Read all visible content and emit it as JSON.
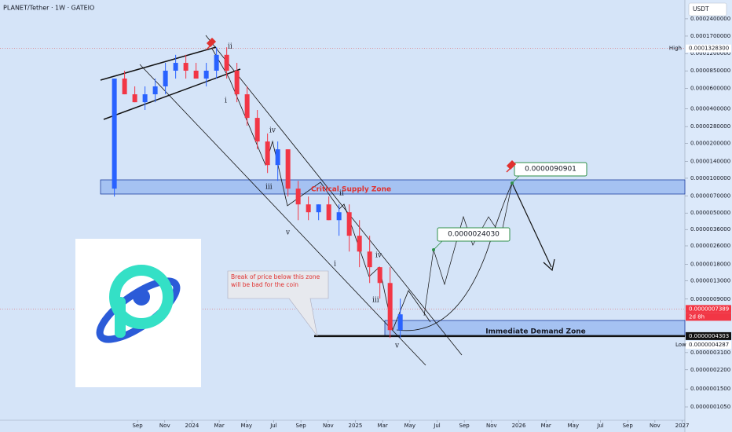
{
  "chart_data": {
    "type": "candlestick",
    "title": "PLANET/Tether · 1W · GATEIO",
    "currency": "USDT",
    "log_scale": true,
    "grid": false,
    "up_color": "#2962ff",
    "down_color": "#f23645",
    "xlim": [
      -10.1,
      40.2
    ],
    "xticks": [
      {
        "value": 0,
        "label": "Sep"
      },
      {
        "value": 2,
        "label": "Nov"
      },
      {
        "value": 4,
        "label": "2024"
      },
      {
        "value": 6,
        "label": "Mar"
      },
      {
        "value": 8,
        "label": "May"
      },
      {
        "value": 10,
        "label": "Jul"
      },
      {
        "value": 12,
        "label": "Sep"
      },
      {
        "value": 14,
        "label": "Nov"
      },
      {
        "value": 16,
        "label": "2025"
      },
      {
        "value": 18,
        "label": "Mar"
      },
      {
        "value": 20,
        "label": "May"
      },
      {
        "value": 22,
        "label": "Jul"
      },
      {
        "value": 24,
        "label": "Sep"
      },
      {
        "value": 26,
        "label": "Nov"
      },
      {
        "value": 28,
        "label": "2026"
      },
      {
        "value": 30,
        "label": "Mar"
      },
      {
        "value": 32,
        "label": "May"
      },
      {
        "value": 34,
        "label": "Jul"
      },
      {
        "value": 36,
        "label": "Sep"
      },
      {
        "value": 38,
        "label": "Nov"
      },
      {
        "value": 40,
        "label": "2027"
      }
    ],
    "ylim": [
      8.05e-08,
      0.000349
    ],
    "yticks": [
      {
        "value": 0.00024,
        "label": "0.0002400000"
      },
      {
        "value": 0.00017,
        "label": "0.0001700000"
      },
      {
        "value": 0.00012,
        "label": "0.0001200000"
      },
      {
        "value": 8.5e-05,
        "label": "0.0000850000"
      },
      {
        "value": 6e-05,
        "label": "0.0000600000"
      },
      {
        "value": 4e-05,
        "label": "0.0000400000"
      },
      {
        "value": 2.8e-05,
        "label": "0.0000280000"
      },
      {
        "value": 2e-05,
        "label": "0.0000200000"
      },
      {
        "value": 1.4e-05,
        "label": "0.0000140000"
      },
      {
        "value": 1e-05,
        "label": "0.0000100000"
      },
      {
        "value": 7e-06,
        "label": "0.0000070000"
      },
      {
        "value": 5e-06,
        "label": "0.0000050000"
      },
      {
        "value": 3.6e-06,
        "label": "0.0000036000"
      },
      {
        "value": 2.6e-06,
        "label": "0.0000026000"
      },
      {
        "value": 1.8e-06,
        "label": "0.0000018000"
      },
      {
        "value": 1.3e-06,
        "label": "0.0000013000"
      },
      {
        "value": 9e-07,
        "label": "0.0000009000"
      },
      {
        "value": 3.1e-07,
        "label": "0.0000003100"
      },
      {
        "value": 2.2e-07,
        "label": "0.0000002200"
      },
      {
        "value": 1.5e-07,
        "label": "0.0000001500"
      },
      {
        "value": 1.05e-07,
        "label": "0.0000001050"
      }
    ],
    "x": [
      -1.7,
      -0.95,
      -0.2,
      0.55,
      1.3,
      2.05,
      2.8,
      3.55,
      4.3,
      5.05,
      5.8,
      6.55,
      7.3,
      8.05,
      8.8,
      9.55,
      10.3,
      11.05,
      11.8,
      12.55,
      13.3,
      14.05,
      14.8,
      15.55,
      16.3,
      17.05,
      17.8,
      18.55,
      19.3
    ],
    "open": [
      8.13e-06,
      7.29e-05,
      5.33e-05,
      4.55e-05,
      5.33e-05,
      6.24e-05,
      8.53e-05,
      9.97e-05,
      8.53e-05,
      7.29e-05,
      8.53e-05,
      0.000117,
      8.53e-05,
      5.33e-05,
      3.33e-05,
      2.08e-05,
      1.3e-05,
      1.78e-05,
      8.13e-06,
      5.94e-06,
      5.08e-06,
      5.94e-06,
      4.34e-06,
      5.08e-06,
      3.18e-06,
      2.32e-06,
      1.7e-06,
      1.24e-06,
      4.85e-07
    ],
    "high": [
      7.29e-05,
      8.53e-05,
      6.24e-05,
      6.24e-05,
      7.29e-05,
      9.97e-05,
      0.000117,
      0.000117,
      9.97e-05,
      9.97e-05,
      0.000136,
      0.000136,
      9.97e-05,
      6.24e-05,
      3.9e-05,
      2.44e-05,
      2.08e-05,
      1.78e-05,
      9.5e-06,
      6.95e-06,
      5.94e-06,
      6.95e-06,
      5.94e-06,
      5.94e-06,
      4.34e-06,
      3.18e-06,
      1.7e-06,
      1.7e-06,
      9.08e-07
    ],
    "low": [
      6.95e-06,
      5.33e-05,
      4.55e-05,
      3.9e-05,
      4.55e-05,
      5.33e-05,
      7.29e-05,
      7.29e-05,
      7.29e-05,
      6.24e-05,
      7.29e-05,
      7.29e-05,
      4.55e-05,
      2.85e-05,
      1.78e-05,
      1.11e-05,
      9.5e-06,
      6.95e-06,
      4.34e-06,
      4.34e-06,
      4.34e-06,
      4.34e-06,
      3.18e-06,
      2.32e-06,
      1.7e-06,
      1.24e-06,
      9.08e-07,
      4.15e-07,
      4.15e-07
    ],
    "close": [
      7.29e-05,
      5.33e-05,
      4.55e-05,
      5.33e-05,
      6.24e-05,
      8.53e-05,
      9.97e-05,
      8.53e-05,
      7.29e-05,
      8.53e-05,
      0.000117,
      8.53e-05,
      5.33e-05,
      3.33e-05,
      2.08e-05,
      1.3e-05,
      1.78e-05,
      8.13e-06,
      5.94e-06,
      5.08e-06,
      5.94e-06,
      4.34e-06,
      5.08e-06,
      3.18e-06,
      2.32e-06,
      1.7e-06,
      1.24e-06,
      4.85e-07,
      6.64e-07
    ],
    "high_level": {
      "name": "High",
      "value": 0.00013283,
      "value_label": "0.0001328300"
    },
    "low_level": {
      "name": "Low",
      "value": 4.287e-07,
      "value_label": "0.0000004287"
    },
    "last_price": {
      "value": 7.389e-07,
      "value_label": "0.0000007389",
      "countdown": "2d 8h"
    },
    "support_level": {
      "value": 4.303e-07,
      "value_label": "0.0000004303"
    },
    "targets": [
      {
        "value": 9.0901e-06,
        "value_label": "0.0000090901"
      },
      {
        "value": 2.403e-06,
        "value_label": "0.0000024030"
      }
    ],
    "zones": [
      "Critical Supply Zone",
      "Immediate Demand Zone"
    ],
    "note": "Break of price below this zone will be bad for the coin",
    "wave_labels": [
      "ii",
      "i",
      "iv",
      "iii",
      "v",
      "ii",
      "i",
      "iv",
      "iii",
      "v"
    ]
  }
}
